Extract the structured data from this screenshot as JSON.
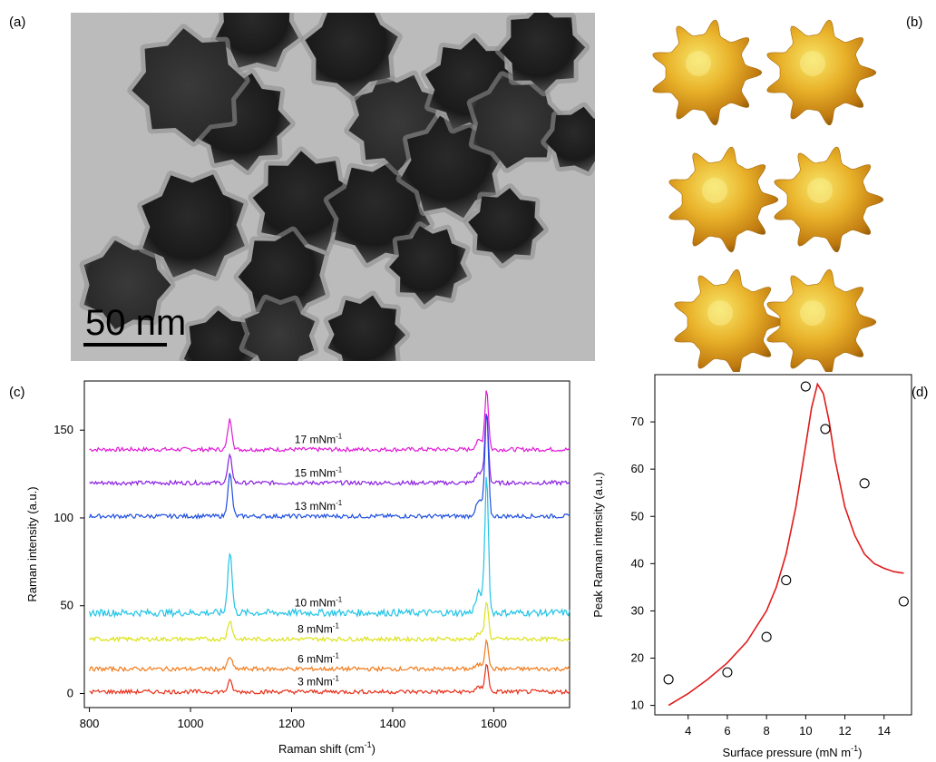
{
  "labels": {
    "a": "(a)",
    "b": "(b)",
    "c": "(c)",
    "d": "(d)"
  },
  "tem": {
    "scale_bar": "50 nm"
  },
  "chart_data": [
    {
      "type": "line",
      "panel": "(c)",
      "xlabel": "Raman shift (cm",
      "xlabel_sup": "-1",
      "xlabel_end": ")",
      "ylabel": "Raman intensity (a.u.)",
      "xlim": [
        790,
        1750
      ],
      "ylim": [
        -8,
        178
      ],
      "xticks": [
        800,
        1000,
        1200,
        1400,
        1600
      ],
      "yticks": [
        0,
        50,
        100,
        150
      ],
      "peaks": [
        1078,
        1586
      ],
      "series": [
        {
          "name": "17 mNm",
          "sup": "-1",
          "baseline": 139,
          "peak_heights": [
            17,
            34
          ],
          "color": "#e21ad7"
        },
        {
          "name": "15 mNm",
          "sup": "-1",
          "baseline": 120,
          "peak_heights": [
            15,
            40
          ],
          "color": "#8a1fe0"
        },
        {
          "name": "13 mNm",
          "sup": "-1",
          "baseline": 101,
          "peak_heights": [
            24,
            58
          ],
          "color": "#1f4fe0"
        },
        {
          "name": "10 mNm",
          "sup": "-1",
          "baseline": 46,
          "peak_heights": [
            35,
            77
          ],
          "color": "#1fc4e6"
        },
        {
          "name": "8 mNm",
          "sup": "-1",
          "baseline": 31,
          "peak_heights": [
            11,
            22
          ],
          "color": "#dde21a"
        },
        {
          "name": "6 mNm",
          "sup": "-1",
          "baseline": 14,
          "peak_heights": [
            7,
            17
          ],
          "color": "#f27a1a"
        },
        {
          "name": "3 mNm",
          "sup": "-1",
          "baseline": 1,
          "peak_heights": [
            6,
            16
          ],
          "color": "#e8301a"
        }
      ]
    },
    {
      "type": "scatter",
      "panel": "(d)",
      "xlabel": "Surface pressure (mN m",
      "xlabel_sup": "-1",
      "xlabel_end": ")",
      "ylabel": "Peak Raman intensity (a.u.)",
      "xlim": [
        2.3,
        15.4
      ],
      "ylim": [
        8,
        80
      ],
      "xticks": [
        4,
        6,
        8,
        10,
        12,
        14
      ],
      "yticks": [
        10,
        20,
        30,
        40,
        50,
        60,
        70
      ],
      "points": [
        {
          "x": 3,
          "y": 15.5
        },
        {
          "x": 6,
          "y": 17
        },
        {
          "x": 8,
          "y": 24.5
        },
        {
          "x": 9,
          "y": 36.5
        },
        {
          "x": 10,
          "y": 77.5
        },
        {
          "x": 11,
          "y": 68.5
        },
        {
          "x": 13,
          "y": 57
        },
        {
          "x": 15,
          "y": 32
        }
      ],
      "fit": {
        "color": "#e01a1a",
        "x": [
          3,
          4,
          5,
          6,
          7,
          8,
          8.5,
          9,
          9.5,
          10,
          10.3,
          10.6,
          10.9,
          11.2,
          11.5,
          12,
          12.5,
          13,
          13.5,
          14,
          14.5,
          15
        ],
        "y": [
          10,
          12.5,
          15.5,
          19,
          23.5,
          30,
          35,
          42,
          52,
          65,
          73,
          78,
          76,
          70,
          62,
          52,
          46,
          42,
          40,
          39,
          38.3,
          38
        ]
      }
    }
  ]
}
